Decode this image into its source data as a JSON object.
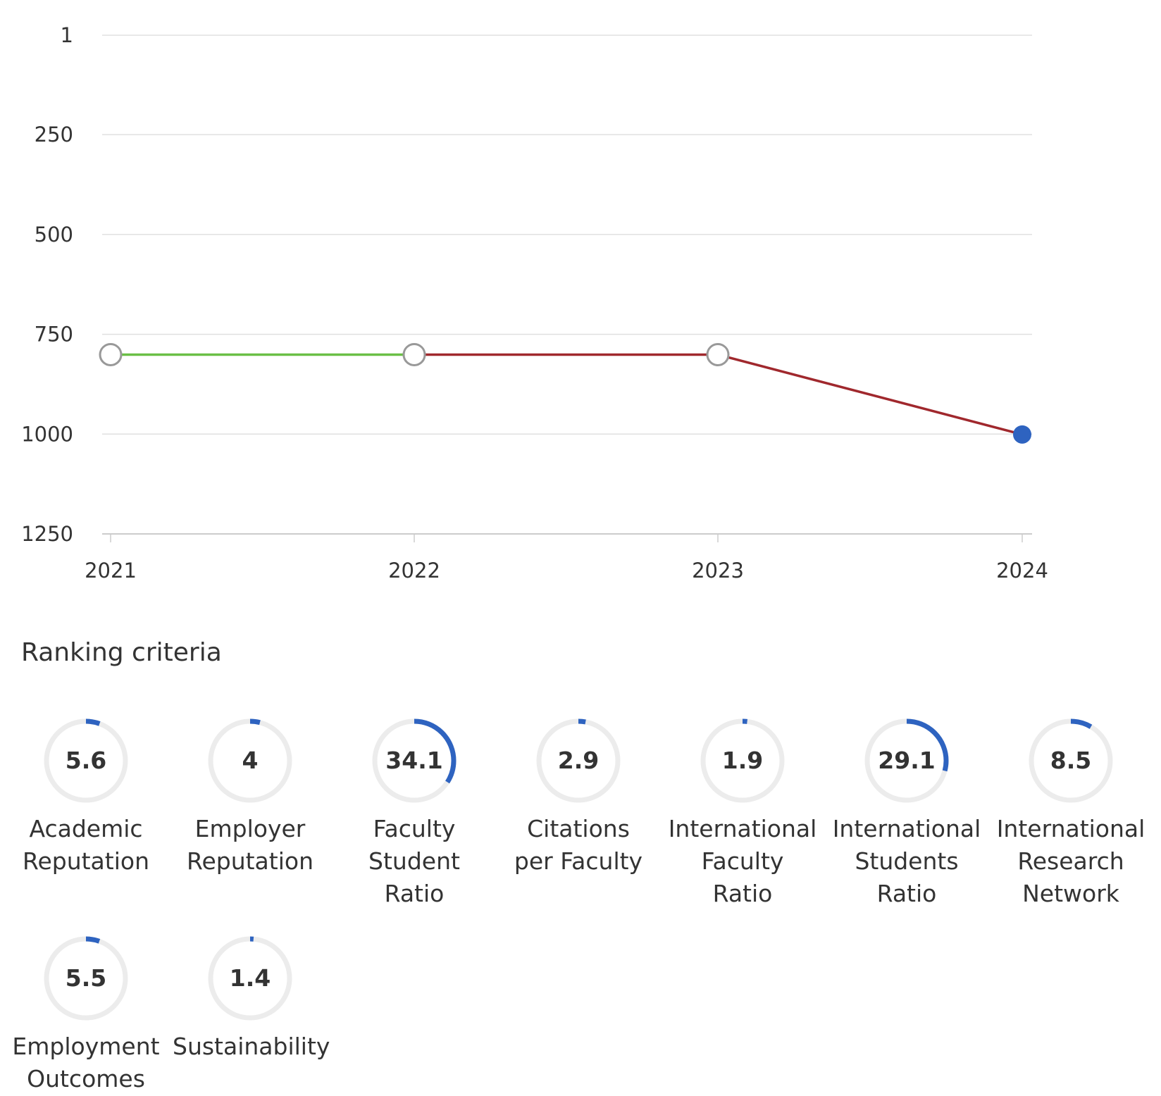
{
  "chart_data": {
    "type": "line",
    "title": "",
    "xlabel": "",
    "ylabel": "",
    "x": [
      "2021",
      "2022",
      "2023",
      "2024"
    ],
    "y_ticks": [
      "1",
      "250",
      "500",
      "750",
      "1000",
      "1250"
    ],
    "ylim": [
      1,
      1250
    ],
    "y_inverted": true,
    "grid": true,
    "series": [
      {
        "values": [
          801,
          801,
          801,
          1001
        ]
      }
    ],
    "segment_colors": [
      "#6abf45",
      "#a0282d",
      "#a0282d"
    ],
    "marker_style": [
      "hollow",
      "hollow",
      "hollow",
      "filled"
    ],
    "colors": {
      "hollow_marker": "#999999",
      "current_marker": "#2e63c0",
      "grid": "#e0e0e0",
      "axis": "#cccccc"
    }
  },
  "criteria": {
    "title": "Ranking criteria",
    "accent_color": "#2e63c0",
    "track_color": "#ececec",
    "max": 100,
    "items": [
      {
        "value": "5.6",
        "label": "Academic\nReputation"
      },
      {
        "value": "4",
        "label": "Employer\nReputation"
      },
      {
        "value": "34.1",
        "label": "Faculty\nStudent\nRatio"
      },
      {
        "value": "2.9",
        "label": "Citations\nper Faculty"
      },
      {
        "value": "1.9",
        "label": "International\nFaculty\nRatio"
      },
      {
        "value": "29.1",
        "label": "International\nStudents\nRatio"
      },
      {
        "value": "8.5",
        "label": "International\nResearch\nNetwork"
      },
      {
        "value": "5.5",
        "label": "Employment\nOutcomes"
      },
      {
        "value": "1.4",
        "label": "Sustainability"
      }
    ]
  }
}
